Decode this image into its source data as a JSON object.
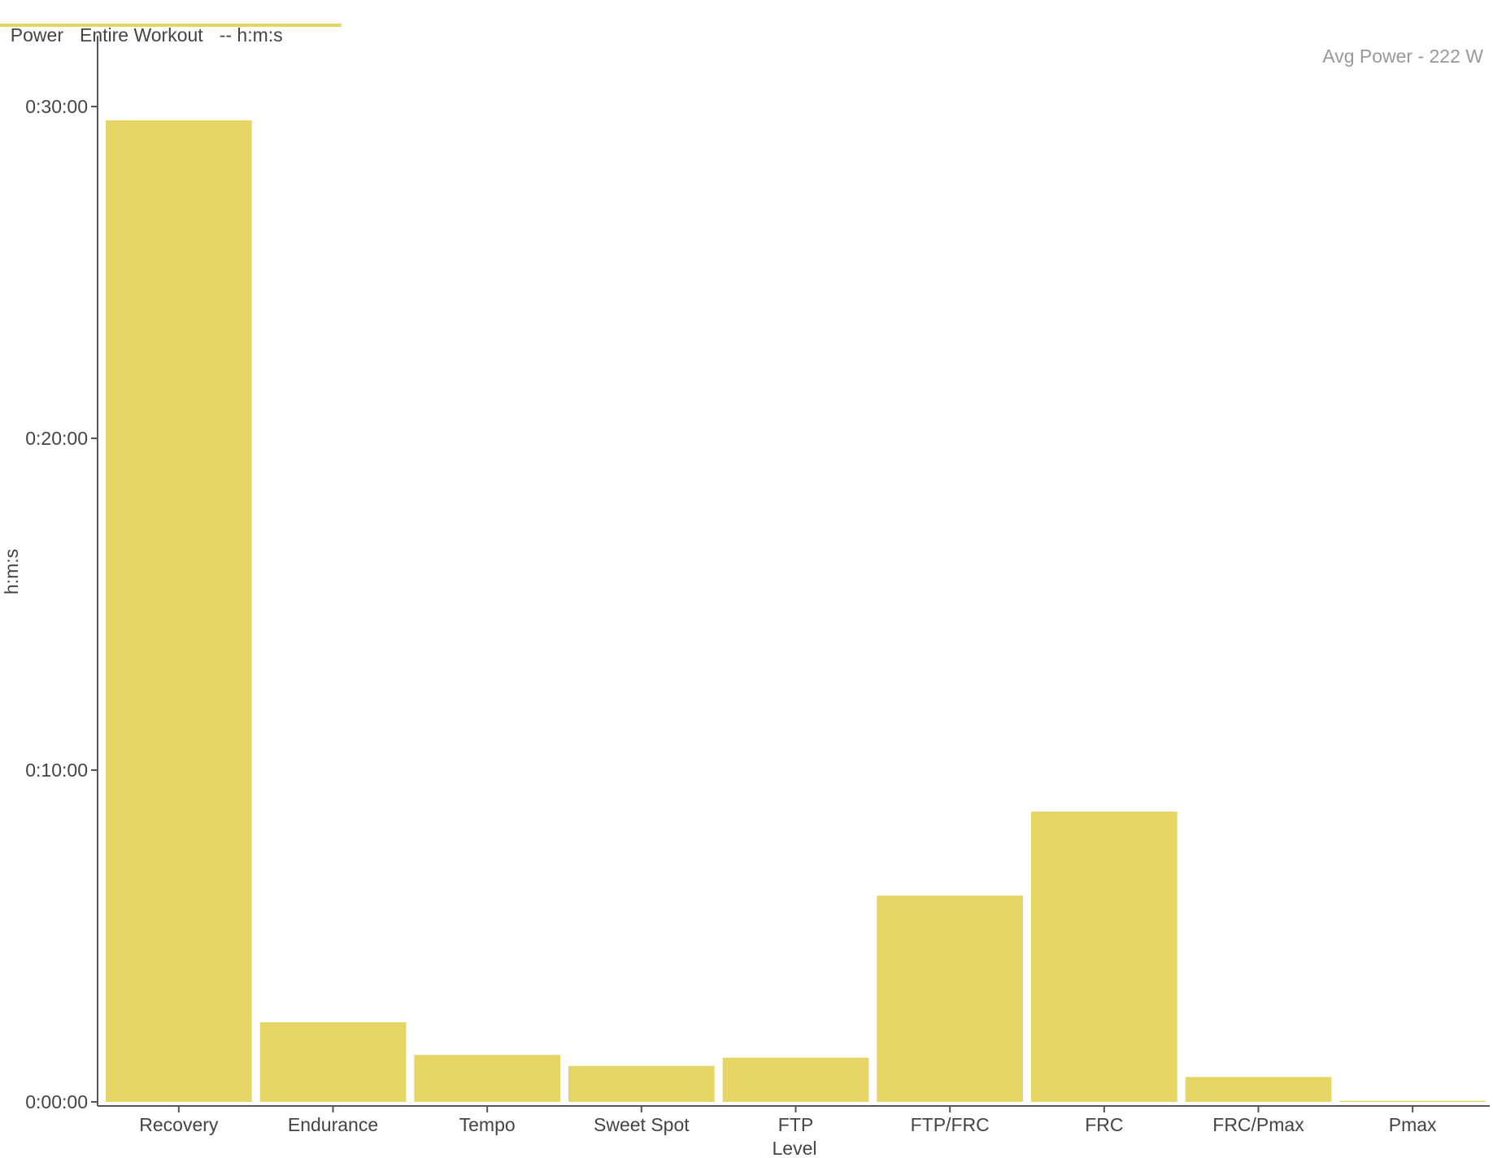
{
  "header": {
    "metric": "Power",
    "range": "Entire Workout",
    "unit_label": "-- h:m:s",
    "accent_color": "#e6d565"
  },
  "annotation": "Avg Power - 222 W",
  "chart_data": {
    "type": "bar",
    "title": "",
    "xlabel": "Level",
    "ylabel": "h:m:s",
    "categories": [
      "Recovery",
      "Endurance",
      "Tempo",
      "Sweet Spot",
      "FTP",
      "FTP/FRC",
      "FRC",
      "FRC/Pmax",
      "Pmax"
    ],
    "values_seconds": [
      1775,
      144,
      85,
      65,
      80,
      373,
      525,
      45,
      2
    ],
    "ylim_seconds": [
      0,
      1900
    ],
    "yticks_seconds": [
      0,
      600,
      1200,
      1800
    ],
    "ytick_labels": [
      "0:00:00",
      "0:10:00",
      "0:20:00",
      "0:30:00"
    ],
    "bar_color": "#e6d565",
    "grid": false,
    "legend": "none"
  }
}
